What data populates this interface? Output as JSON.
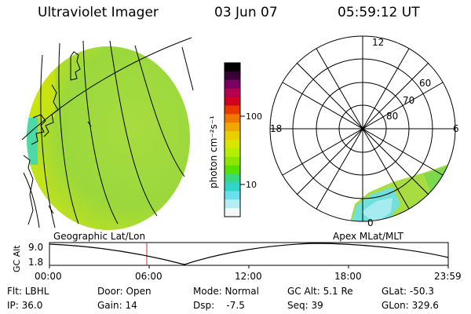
{
  "header": {
    "title": "Ultraviolet Imager",
    "date": "03 Jun 07",
    "time": "05:59:12  UT"
  },
  "colorbar": {
    "unit_label": "photon cm⁻²s⁻¹",
    "ticks": [
      "100",
      "10"
    ],
    "colors": [
      "#000000",
      "#3a0036",
      "#7a0064",
      "#b4004e",
      "#d2001e",
      "#e83a00",
      "#f07800",
      "#f0a800",
      "#eacf00",
      "#d8e600",
      "#b4ee00",
      "#8ce600",
      "#58e000",
      "#38d880",
      "#30d4c8",
      "#6ae0ec",
      "#b4eef4",
      "#f0f8f8"
    ]
  },
  "polar": {
    "labels": [
      "12",
      "6",
      "18",
      "0",
      "60",
      "70",
      "80"
    ]
  },
  "map_labels": {
    "left": "Geographic Lat/Lon",
    "right": "Apex  MLat/MLT"
  },
  "altitude_plot": {
    "ylabel": "GC Alt",
    "y_ticks": [
      "9.0",
      "1.8"
    ],
    "x_ticks": [
      "00:00",
      "06:00",
      "12:00",
      "18:00",
      "23:59"
    ]
  },
  "info": {
    "flt": "Flt: LBHL",
    "ip": "IP: 36.0",
    "door": "Door: Open",
    "gain": "Gain: 14",
    "mode": "Mode: Normal",
    "dsp": "Dsp:    -7.5",
    "gcalt": "GC Alt: 5.1 Re",
    "seq": "Seq: 39",
    "glat": "GLat: -50.3",
    "glon": "GLon: 329.6"
  },
  "colors": {
    "image_green": "#9ad83c",
    "image_yellow": "#d8e600",
    "image_cyan": "#38d8c0",
    "marker_red": "#c03030"
  }
}
